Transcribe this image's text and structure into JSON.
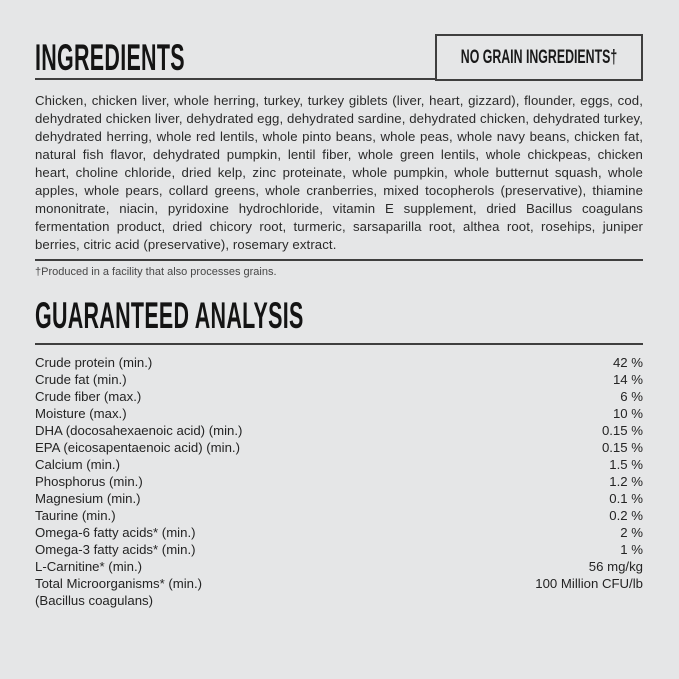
{
  "colors": {
    "background": "#e5e6e7",
    "rule": "#3f3f3f",
    "heading_text": "#141414",
    "body_text": "#2a2a2a"
  },
  "label": {
    "ingredients": {
      "title": "INGREDIENTS",
      "badge": "NO GRAIN INGREDIENTS†",
      "body": "Chicken, chicken liver, whole herring, turkey, turkey giblets (liver, heart, gizzard), flounder, eggs, cod, dehydrated chicken liver, dehydrated egg, dehydrated sardine, dehydrated chicken, dehydrated turkey, dehydrated herring, whole red lentils, whole pinto beans, whole peas, whole navy beans, chicken fat, natural fish flavor, dehydrated pumpkin, lentil fiber, whole green lentils, whole chickpeas, chicken heart, choline chloride, dried kelp, zinc proteinate, whole pumpkin, whole butternut squash, whole apples, whole pears, collard greens, whole cranberries, mixed tocopherols (preservative), thiamine mononitrate, niacin, pyridoxine hydrochloride, vitamin E supplement, dried Bacillus coagulans fermentation product, dried chicory root, turmeric, sarsaparilla root, althea root, rosehips, juniper berries, citric acid (preservative), rosemary extract.",
      "footnote": "†Produced in a facility that also processes grains."
    },
    "analysis": {
      "title": "GUARANTEED ANALYSIS",
      "rows": [
        {
          "label": "Crude protein (min.)",
          "value": "42 %"
        },
        {
          "label": "Crude fat (min.)",
          "value": "14 %"
        },
        {
          "label": "Crude fiber (max.)",
          "value": "6 %"
        },
        {
          "label": "Moisture (max.)",
          "value": "10 %"
        },
        {
          "label": "DHA (docosahexaenoic acid) (min.)",
          "value": "0.15 %"
        },
        {
          "label": "EPA (eicosapentaenoic acid) (min.)",
          "value": "0.15 %"
        },
        {
          "label": "Calcium (min.)",
          "value": "1.5 %"
        },
        {
          "label": "Phosphorus (min.)",
          "value": "1.2 %"
        },
        {
          "label": "Magnesium (min.)",
          "value": "0.1 %"
        },
        {
          "label": "Taurine (min.)",
          "value": "0.2 %"
        },
        {
          "label": "Omega-6 fatty acids* (min.)",
          "value": "2 %"
        },
        {
          "label": "Omega-3 fatty acids* (min.)",
          "value": "1 %"
        },
        {
          "label": "L-Carnitine* (min.)",
          "value": "56 mg/kg"
        },
        {
          "label": "Total Microorganisms* (min.)",
          "value": "100 Million CFU/lb"
        },
        {
          "label": "(Bacillus coagulans)",
          "value": ""
        }
      ]
    }
  }
}
